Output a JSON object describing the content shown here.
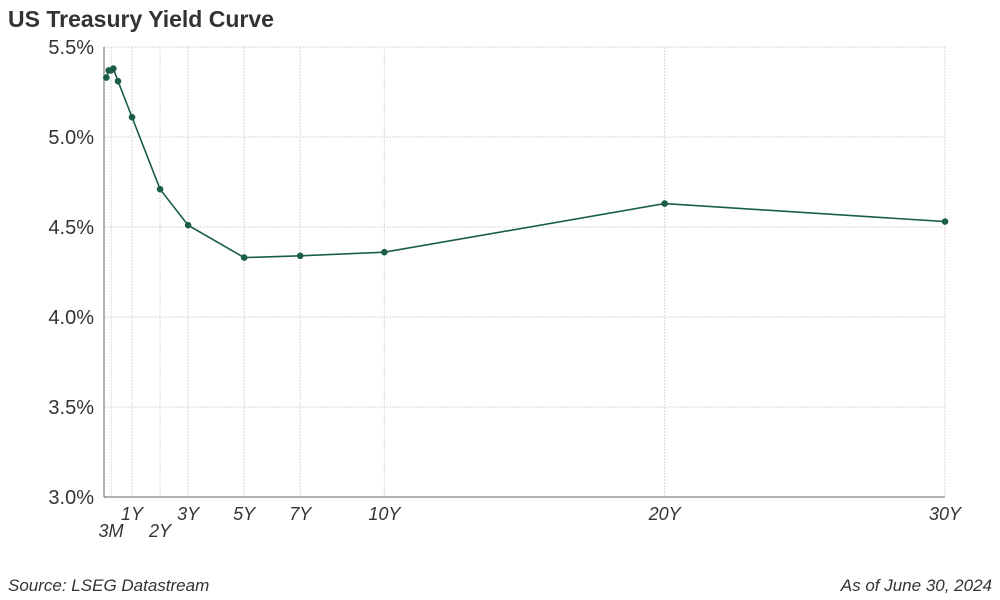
{
  "chart_data": {
    "type": "line",
    "title": "US Treasury Yield Curve",
    "xlabel": "",
    "ylabel": "",
    "ylim": [
      3.0,
      5.5
    ],
    "y_ticks": [
      "3.0%",
      "3.5%",
      "4.0%",
      "4.5%",
      "5.0%",
      "5.5%"
    ],
    "y_tick_values": [
      3.0,
      3.5,
      4.0,
      4.5,
      5.0,
      5.5
    ],
    "x_unit": "years to maturity",
    "x_ticks": [
      {
        "label": "3M",
        "x": 0.25
      },
      {
        "label": "1Y",
        "x": 1
      },
      {
        "label": "2Y",
        "x": 2
      },
      {
        "label": "3Y",
        "x": 3
      },
      {
        "label": "5Y",
        "x": 5
      },
      {
        "label": "7Y",
        "x": 7
      },
      {
        "label": "10Y",
        "x": 10
      },
      {
        "label": "20Y",
        "x": 20
      },
      {
        "label": "30Y",
        "x": 30
      }
    ],
    "grid": true,
    "series_color": "#1a5e45",
    "grid_color": "#d9d9d9",
    "series": [
      {
        "points": [
          {
            "x": 0.0833,
            "y": 5.33
          },
          {
            "x": 0.1667,
            "y": 5.37
          },
          {
            "x": 0.25,
            "y": 5.37
          },
          {
            "x": 0.3333,
            "y": 5.38
          },
          {
            "x": 0.5,
            "y": 5.31
          },
          {
            "x": 1,
            "y": 5.11
          },
          {
            "x": 2,
            "y": 4.71
          },
          {
            "x": 3,
            "y": 4.51
          },
          {
            "x": 5,
            "y": 4.33
          },
          {
            "x": 7,
            "y": 4.34
          },
          {
            "x": 10,
            "y": 4.36
          },
          {
            "x": 20,
            "y": 4.63
          },
          {
            "x": 30,
            "y": 4.53
          }
        ]
      }
    ]
  },
  "footer": {
    "source": "Source: LSEG Datastream",
    "as_of": "As of June 30, 2024"
  }
}
